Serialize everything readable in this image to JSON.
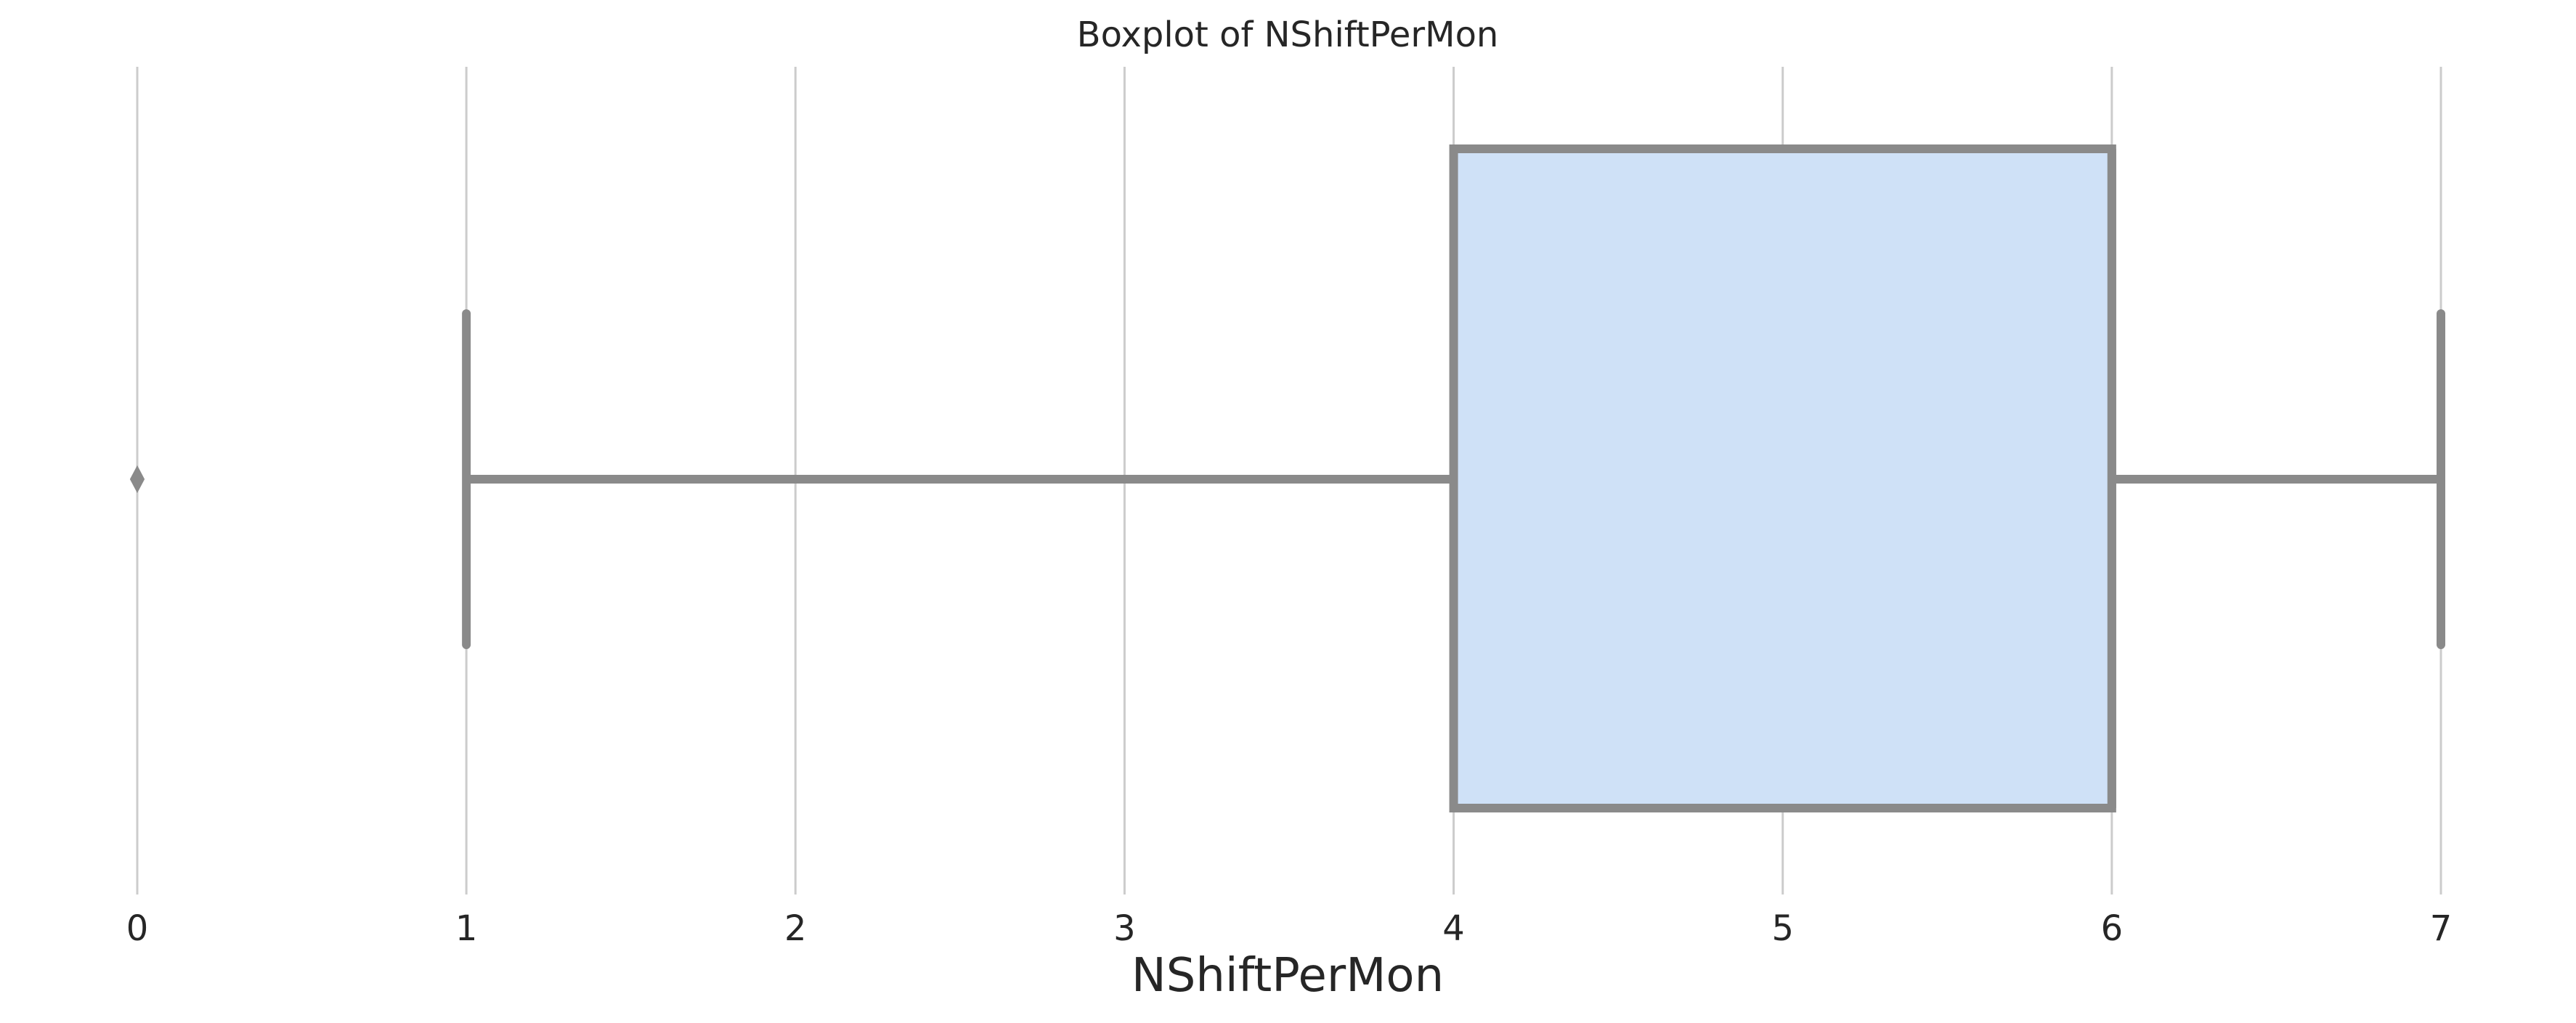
{
  "chart_data": {
    "type": "boxplot",
    "title": "Boxplot of NShiftPerMon",
    "xlabel": "NShiftPerMon",
    "ylabel": "",
    "orientation": "horizontal",
    "xlim": [
      0,
      7
    ],
    "xticks": [
      0,
      1,
      2,
      3,
      4,
      5,
      6,
      7
    ],
    "grid": "vertical",
    "series": [
      {
        "whisker_low": 1,
        "q1": 4,
        "median": 6,
        "q3": 6,
        "whisker_high": 7,
        "outliers": [
          0
        ]
      }
    ],
    "colors": {
      "box_fill": "#cfe1f7",
      "line": "#8a8a8a",
      "grid": "#cccccc",
      "text": "#262626"
    }
  }
}
